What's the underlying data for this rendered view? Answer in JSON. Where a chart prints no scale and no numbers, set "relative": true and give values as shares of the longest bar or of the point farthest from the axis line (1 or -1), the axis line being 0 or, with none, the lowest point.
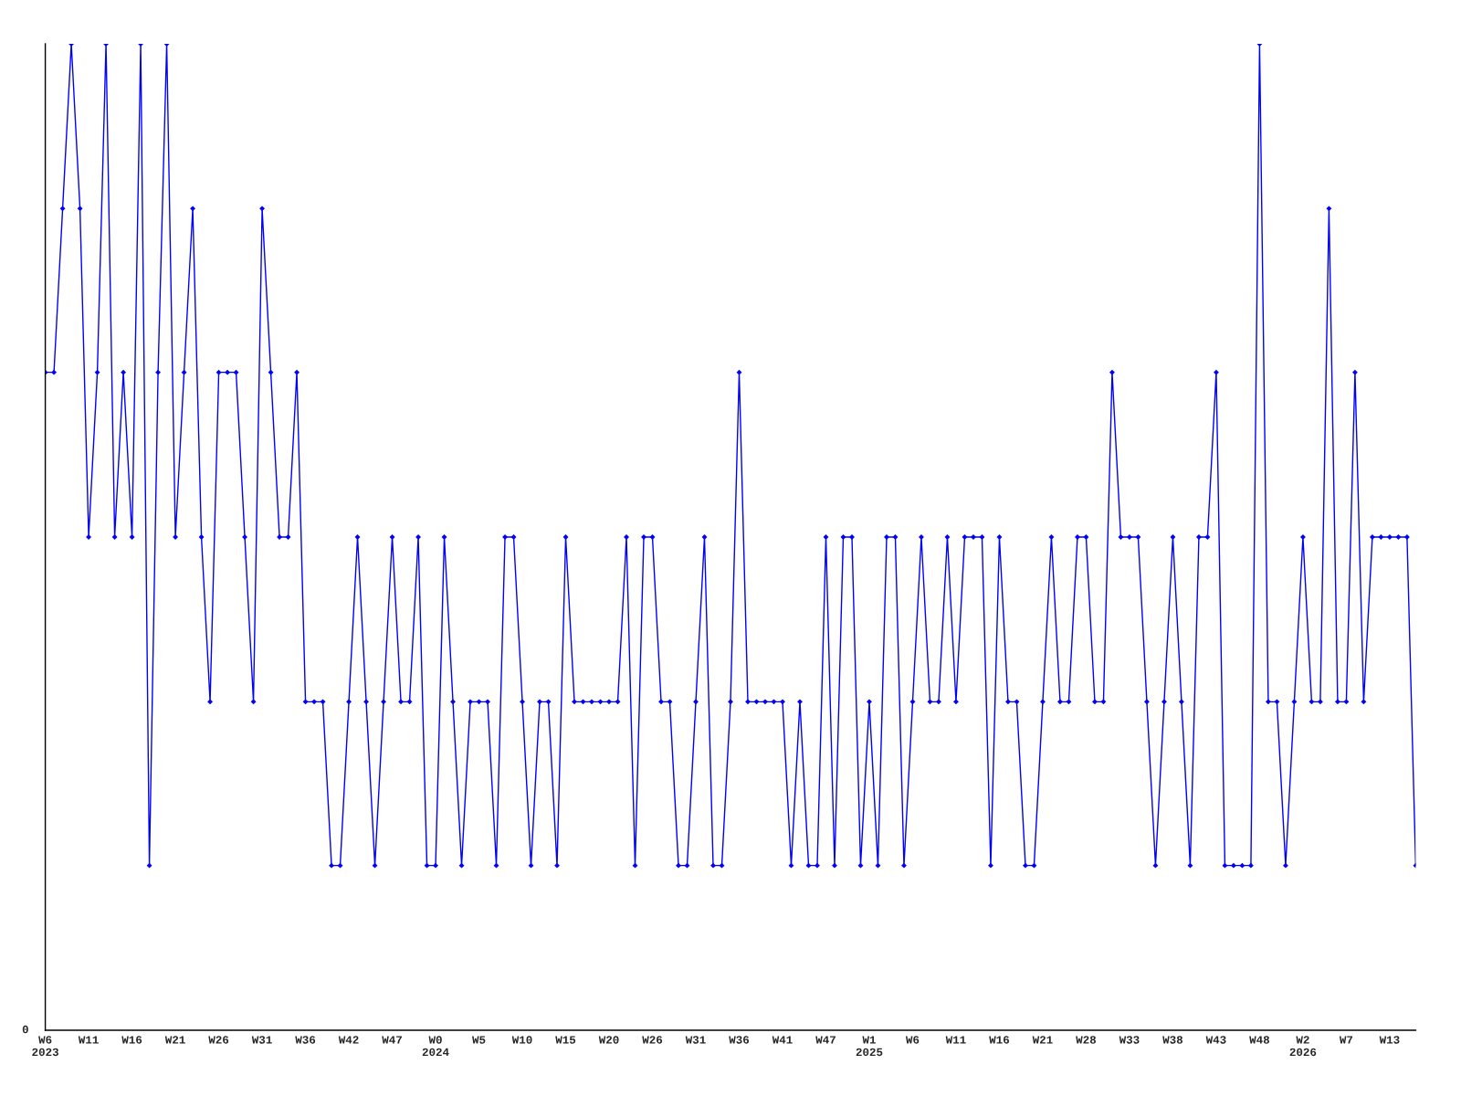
{
  "chart_data": {
    "type": "line",
    "relative": true,
    "marker": "diamond",
    "line_style": "solid",
    "grid": false,
    "legend": false,
    "annotations": [
      "0"
    ],
    "categories": [
      "W6\n2023",
      null,
      null,
      null,
      null,
      "W11",
      null,
      null,
      null,
      null,
      "W16",
      null,
      null,
      null,
      null,
      "W21",
      null,
      null,
      null,
      null,
      "W26",
      null,
      null,
      null,
      null,
      "W31",
      null,
      null,
      null,
      null,
      "W36",
      null,
      null,
      null,
      null,
      "W42",
      null,
      null,
      null,
      null,
      "W47",
      null,
      null,
      null,
      null,
      "W0\n2024",
      null,
      null,
      null,
      null,
      "W5",
      null,
      null,
      null,
      null,
      "W10",
      null,
      null,
      null,
      null,
      "W15",
      null,
      null,
      null,
      null,
      "W20",
      null,
      null,
      null,
      null,
      "W26",
      null,
      null,
      null,
      null,
      "W31",
      null,
      null,
      null,
      null,
      "W36",
      null,
      null,
      null,
      null,
      "W41",
      null,
      null,
      null,
      null,
      "W47",
      null,
      null,
      null,
      null,
      "W1\n2025",
      null,
      null,
      null,
      null,
      "W6",
      null,
      null,
      null,
      null,
      "W11",
      null,
      null,
      null,
      null,
      "W16",
      null,
      null,
      null,
      null,
      "W21",
      null,
      null,
      null,
      null,
      "W28",
      null,
      null,
      null,
      null,
      "W33",
      null,
      null,
      null,
      null,
      "W38",
      null,
      null,
      null,
      null,
      "W43",
      null,
      null,
      null,
      null,
      "W48",
      null,
      null,
      null,
      null,
      "W2\n2026",
      null,
      null,
      null,
      null,
      "W7",
      null,
      null,
      null,
      null,
      "W13",
      null,
      null,
      null
    ],
    "series": [
      {
        "color": "#0000ff",
        "values": [
          0.667,
          0.667,
          0.833,
          1,
          0.833,
          0.5,
          0.667,
          1,
          0.5,
          0.667,
          0.5,
          1,
          0.167,
          0.667,
          1,
          0.5,
          0.667,
          0.833,
          0.5,
          0.333,
          0.667,
          0.667,
          0.667,
          0.5,
          0.333,
          0.833,
          0.667,
          0.5,
          0.5,
          0.667,
          0.333,
          0.333,
          0.333,
          0.167,
          0.167,
          0.333,
          0.5,
          0.333,
          0.167,
          0.333,
          0.5,
          0.333,
          0.333,
          0.5,
          0.167,
          0.167,
          0.5,
          0.333,
          0.167,
          0.333,
          0.333,
          0.333,
          0.167,
          0.5,
          0.5,
          0.333,
          0.167,
          0.333,
          0.333,
          0.167,
          0.5,
          0.333,
          0.333,
          0.333,
          0.333,
          0.333,
          0.333,
          0.5,
          0.167,
          0.5,
          0.5,
          0.333,
          0.333,
          0.167,
          0.167,
          0.333,
          0.5,
          0.167,
          0.167,
          0.333,
          0.667,
          0.333,
          0.333,
          0.333,
          0.333,
          0.333,
          0.167,
          0.333,
          0.167,
          0.167,
          0.5,
          0.167,
          0.5,
          0.5,
          0.167,
          0.333,
          0.167,
          0.5,
          0.5,
          0.167,
          0.333,
          0.5,
          0.333,
          0.333,
          0.5,
          0.333,
          0.5,
          0.5,
          0.5,
          0.167,
          0.5,
          0.333,
          0.333,
          0.167,
          0.167,
          0.333,
          0.5,
          0.333,
          0.333,
          0.5,
          0.5,
          0.333,
          0.333,
          0.667,
          0.5,
          0.5,
          0.5,
          0.333,
          0.167,
          0.333,
          0.5,
          0.333,
          0.167,
          0.5,
          0.5,
          0.667,
          0.167,
          0.167,
          0.167,
          0.167,
          1,
          0.333,
          0.333,
          0.167,
          0.333,
          0.5,
          0.333,
          0.333,
          0.833,
          0.333,
          0.333,
          0.667,
          0.333,
          0.5,
          0.5,
          0.5,
          0.5,
          0.5,
          0.167
        ]
      }
    ]
  }
}
